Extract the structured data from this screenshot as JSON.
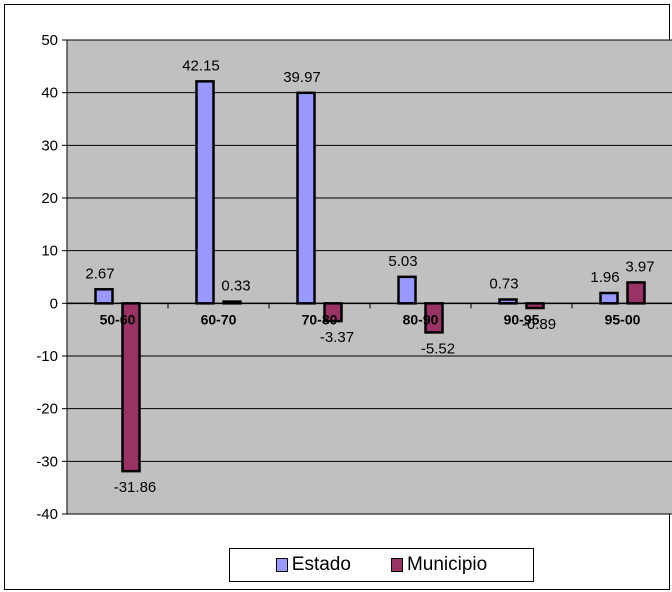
{
  "chart_data": {
    "type": "bar",
    "categories": [
      "50-60",
      "60-70",
      "70-80",
      "80-90",
      "90-95",
      "95-00"
    ],
    "series": [
      {
        "name": "Estado",
        "values": [
          2.67,
          42.15,
          39.97,
          5.03,
          0.73,
          1.96
        ],
        "labels": [
          "2.67",
          "42.15",
          "39.97",
          "5.03",
          "0.73",
          "1.96"
        ],
        "color": "#9999ff"
      },
      {
        "name": "Municipio",
        "values": [
          -31.86,
          0.33,
          -3.37,
          -5.52,
          -0.89,
          3.97
        ],
        "labels": [
          "-31.86",
          "0.33",
          "-3.37",
          "-5.52",
          "-0.89",
          "3.97"
        ],
        "color": "#993366"
      }
    ],
    "ylim": [
      -40,
      50
    ],
    "yticks": [
      "50",
      "40",
      "30",
      "20",
      "10",
      "0",
      "-10",
      "-20",
      "-30",
      "-40"
    ],
    "grid": true,
    "plot_background": "#c0c0c0",
    "legend_position": "bottom"
  }
}
